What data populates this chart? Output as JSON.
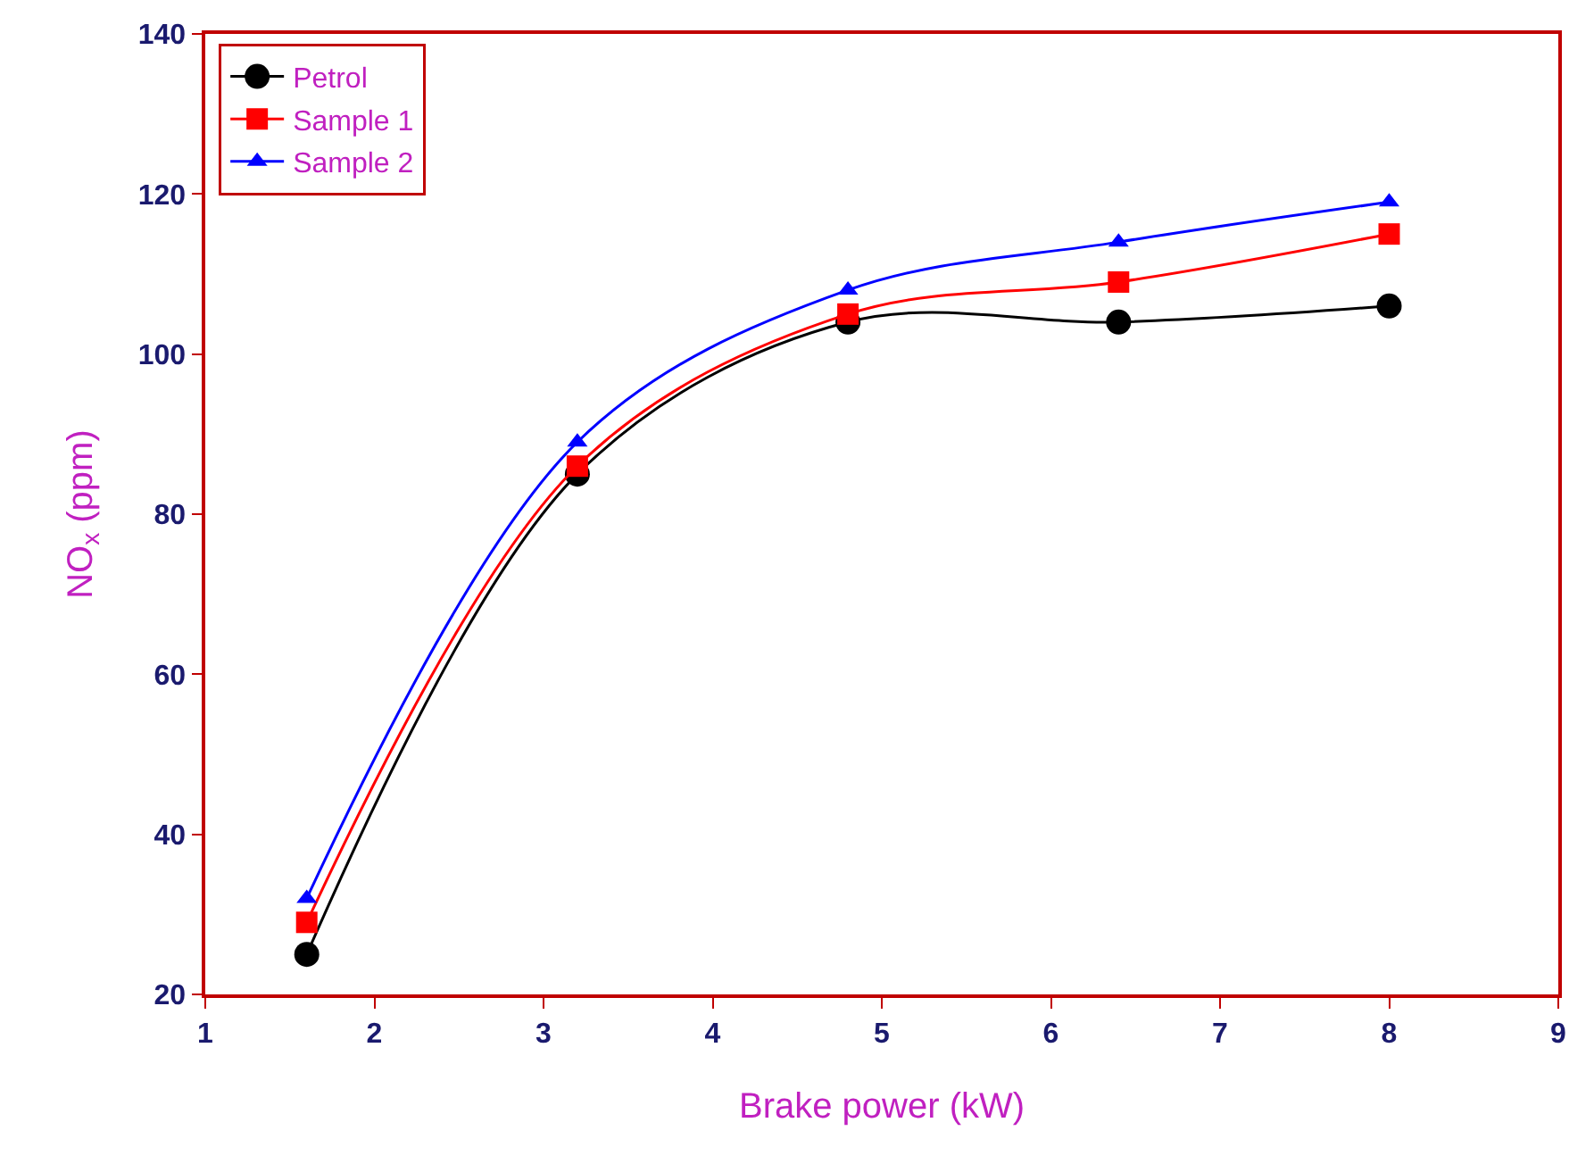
{
  "chart_data": {
    "type": "line",
    "xlabel": "Brake power (kW)",
    "ylabel": "NO$_{x}$ (ppm)",
    "x": [
      1.6,
      3.2,
      4.8,
      6.4,
      8
    ],
    "series": [
      {
        "name": "Petrol",
        "color": "#000000",
        "marker": "circle",
        "values": [
          25,
          85,
          104,
          104,
          106
        ]
      },
      {
        "name": "Sample 1",
        "color": "#ff0000",
        "marker": "square",
        "values": [
          29,
          86,
          105,
          109,
          115
        ]
      },
      {
        "name": "Sample 2",
        "color": "#0000ff",
        "marker": "triangle",
        "values": [
          32,
          89,
          108,
          114,
          119
        ]
      }
    ],
    "xlim": [
      1,
      9
    ],
    "xticks": [
      1,
      2,
      3,
      4,
      5,
      6,
      7,
      8,
      9
    ],
    "ylim": [
      20,
      140
    ],
    "yticks": [
      20,
      40,
      60,
      80,
      100,
      120,
      140
    ],
    "legend": "top left",
    "line_style": "solid"
  }
}
